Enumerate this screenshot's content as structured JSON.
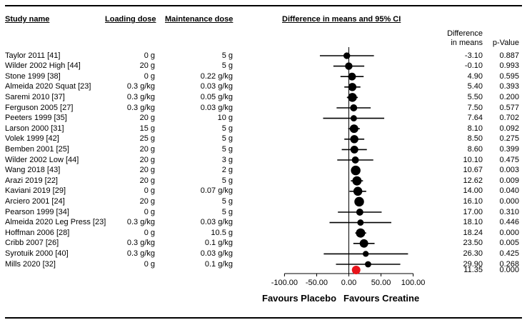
{
  "headers": {
    "study_name": "Study name",
    "loading_dose": "Loading dose",
    "maintenance_dose": "Maintenance dose",
    "plot_title": "Difference in means and 95% CI",
    "diff_col_line1": "Difference",
    "diff_col_line2": "in means",
    "p_col": "p-Value"
  },
  "studies": [
    {
      "name": "Taylor 2011 [41]",
      "loading": "0 g",
      "maintenance": "5 g",
      "diff": "-3.10",
      "p": "0.887"
    },
    {
      "name": "Wilder 2002 High [44]",
      "loading": "20 g",
      "maintenance": "5 g",
      "diff": "-0.10",
      "p": "0.993"
    },
    {
      "name": "Stone 1999 [38]",
      "loading": "0 g",
      "maintenance": "0.22 g/kg",
      "diff": "4.90",
      "p": "0.595"
    },
    {
      "name": "Almeida 2020 Squat [23]",
      "loading": "0.3 g/kg",
      "maintenance": "0.03 g/kg",
      "diff": "5.40",
      "p": "0.393"
    },
    {
      "name": "Saremi 2010 [37]",
      "loading": "0.3 g/kg",
      "maintenance": "0.05 g/kg",
      "diff": "5.50",
      "p": "0.200"
    },
    {
      "name": "Ferguson 2005 [27]",
      "loading": "0.3 g/kg",
      "maintenance": "0.03 g/kg",
      "diff": "7.50",
      "p": "0.577"
    },
    {
      "name": "Peeters 1999 [35]",
      "loading": "20 g",
      "maintenance": "10 g",
      "diff": "7.64",
      "p": "0.702"
    },
    {
      "name": "Larson 2000 [31]",
      "loading": "15 g",
      "maintenance": "5 g",
      "diff": "8.10",
      "p": "0.092"
    },
    {
      "name": "Volek 1999 [42]",
      "loading": "25 g",
      "maintenance": "5 g",
      "diff": "8.50",
      "p": "0.275"
    },
    {
      "name": "Bemben 2001 [25]",
      "loading": "20 g",
      "maintenance": "5 g",
      "diff": "8.60",
      "p": "0.399"
    },
    {
      "name": "Wilder 2002 Low [44]",
      "loading": "20 g",
      "maintenance": "3 g",
      "diff": "10.10",
      "p": "0.475"
    },
    {
      "name": "Wang 2018 [43]",
      "loading": "20 g",
      "maintenance": "2 g",
      "diff": "10.67",
      "p": "0.003"
    },
    {
      "name": "Arazi 2019 [22]",
      "loading": "20 g",
      "maintenance": "5 g",
      "diff": "12.62",
      "p": "0.009"
    },
    {
      "name": "Kaviani 2019 [29]",
      "loading": "0 g",
      "maintenance": "0.07 g/kg",
      "diff": "14.00",
      "p": "0.040"
    },
    {
      "name": "Arciero 2001 [24]",
      "loading": "20 g",
      "maintenance": "5 g",
      "diff": "16.10",
      "p": "0.000"
    },
    {
      "name": "Pearson 1999 [34]",
      "loading": "0 g",
      "maintenance": "5 g",
      "diff": "17.00",
      "p": "0.310"
    },
    {
      "name": "Almeida 2020 Leg Press [23]",
      "loading": "0.3 g/kg",
      "maintenance": "0.03 g/kg",
      "diff": "18.10",
      "p": "0.446"
    },
    {
      "name": "Hoffman 2006 [28]",
      "loading": "0 g",
      "maintenance": "10.5 g",
      "diff": "18.24",
      "p": "0.000"
    },
    {
      "name": "Cribb 2007 [26]",
      "loading": "0.3 g/kg",
      "maintenance": "0.1 g/kg",
      "diff": "23.50",
      "p": "0.005"
    },
    {
      "name": "Syrotuik 2000 [40]",
      "loading": "0.3 g/kg",
      "maintenance": "0.03 g/kg",
      "diff": "26.30",
      "p": "0.425"
    },
    {
      "name": "Mills 2020 [32]",
      "loading": "0 g",
      "maintenance": "0.1 g/kg",
      "diff": "29.90",
      "p": "0.268"
    }
  ],
  "summary": {
    "diff": "11.35",
    "p": "0.000"
  },
  "chart_data": {
    "type": "scatter",
    "title": "Difference in means and 95% CI",
    "xlim": [
      -100,
      100
    ],
    "x_ticks": [
      "-100.00",
      "-50.00",
      "0.00",
      "50.00",
      "100.00"
    ],
    "x_tick_values": [
      -100,
      -50,
      0,
      50,
      100
    ],
    "xlabel_left": "Favours Placebo",
    "xlabel_right": "Favours Creatine",
    "reference_line": 0,
    "categories": [
      "Taylor 2011 [41]",
      "Wilder 2002 High [44]",
      "Stone 1999 [38]",
      "Almeida 2020 Squat [23]",
      "Saremi 2010 [37]",
      "Ferguson 2005 [27]",
      "Peeters 1999 [35]",
      "Larson 2000 [31]",
      "Volek 1999 [42]",
      "Bemben 2001 [25]",
      "Wilder 2002 Low [44]",
      "Wang 2018 [43]",
      "Arazi 2019 [22]",
      "Kaviani 2019 [29]",
      "Arciero 2001 [24]",
      "Pearson 1999 [34]",
      "Almeida 2020 Leg Press [23]",
      "Hoffman 2006 [28]",
      "Cribb 2007 [26]",
      "Syrotuik 2000 [40]",
      "Mills 2020 [32]"
    ],
    "estimates": [
      -3.1,
      -0.1,
      4.9,
      5.4,
      5.5,
      7.5,
      7.64,
      8.1,
      8.5,
      8.6,
      10.1,
      10.67,
      12.62,
      14.0,
      16.1,
      17.0,
      18.1,
      18.24,
      23.5,
      26.3,
      29.9
    ],
    "ci_lower": [
      -45,
      -24,
      -13,
      -7,
      -3,
      -19,
      -40,
      -1,
      -7,
      -11,
      -18,
      4,
      3,
      1,
      9,
      -17,
      -30,
      10,
      7,
      -39,
      -20
    ],
    "ci_upper": [
      39,
      24,
      23,
      18,
      14,
      34,
      55,
      17,
      24,
      28,
      38,
      17,
      22,
      27,
      23,
      51,
      66,
      27,
      40,
      92,
      80
    ],
    "point_weights": [
      0.9,
      1.0,
      1.05,
      1.1,
      1.2,
      0.95,
      0.85,
      1.15,
      1.1,
      1.05,
      0.95,
      1.3,
      1.25,
      1.2,
      1.3,
      0.95,
      0.85,
      1.25,
      1.15,
      0.8,
      0.85
    ],
    "pooled_estimate": 11.35,
    "pooled_p": 0.0,
    "point_color": "#000000",
    "pooled_color": "#e8141b"
  }
}
